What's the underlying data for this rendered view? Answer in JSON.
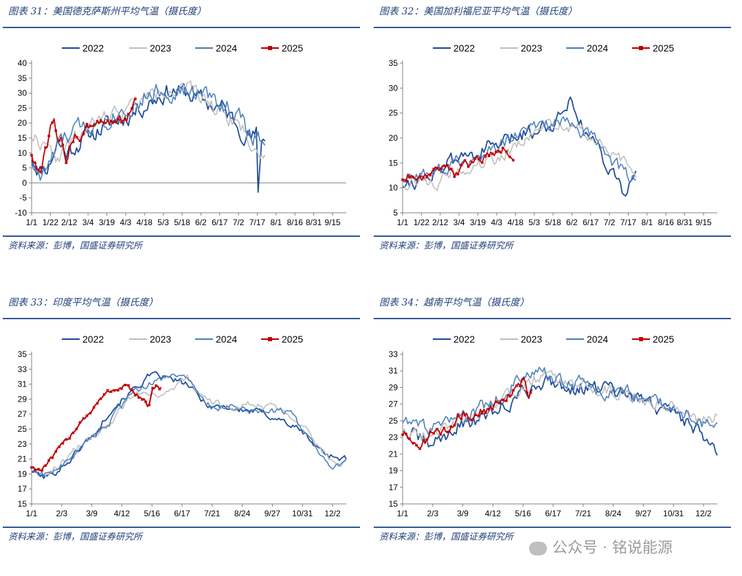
{
  "panels": [
    {
      "title": "图表 31：美国德克萨斯州平均气温（摄氏度）",
      "source": "资料来源：彭博，国盛证券研究所",
      "chart_data": {
        "type": "line",
        "legend": [
          "2022",
          "2023",
          "2024",
          "2025"
        ],
        "ylim": [
          -10,
          40
        ],
        "yticks": [
          -10,
          -5,
          0,
          5,
          10,
          15,
          20,
          25,
          30,
          35,
          40
        ],
        "xticks": [
          "1/1",
          "1/22",
          "2/12",
          "3/4",
          "3/19",
          "4/3",
          "4/18",
          "5/3",
          "5/18",
          "6/2",
          "6/17",
          "7/2",
          "7/17",
          "8/1",
          "8/16",
          "8/31",
          "9/15"
        ],
        "series": [
          {
            "name": "2022",
            "color": "#1f4e9a",
            "width": 1.8,
            "marker": false,
            "seed": 11,
            "amp": 5.5,
            "x": [
              0,
              10,
              20,
              30,
              40,
              60,
              80,
              100,
              120,
              140,
              160,
              180,
              200,
              220,
              240,
              255,
              260,
              262,
              266,
              270
            ],
            "y": [
              9,
              4,
              6,
              14,
              10,
              15,
              18,
              21,
              24,
              28,
              31,
              30,
              27,
              25,
              19,
              15,
              16,
              -6,
              15,
              14
            ]
          },
          {
            "name": "2023",
            "color": "#bfbfbf",
            "width": 1.6,
            "marker": false,
            "seed": 22,
            "amp": 4.5,
            "x": [
              0,
              10,
              20,
              30,
              40,
              60,
              80,
              100,
              120,
              140,
              160,
              180,
              200,
              220,
              240,
              255,
              270
            ],
            "y": [
              16,
              14,
              10,
              8,
              12,
              17,
              21,
              24,
              26,
              30,
              32,
              31,
              28,
              24,
              20,
              12,
              8
            ]
          },
          {
            "name": "2024",
            "color": "#4f81bd",
            "width": 1.6,
            "marker": false,
            "seed": 33,
            "amp": 5.5,
            "x": [
              0,
              10,
              20,
              30,
              40,
              60,
              80,
              100,
              120,
              140,
              160,
              180,
              200,
              220,
              240,
              255,
              270
            ],
            "y": [
              8,
              2,
              6,
              12,
              15,
              19,
              21,
              24,
              27,
              30,
              31,
              30,
              29,
              27,
              22,
              15,
              16
            ]
          },
          {
            "name": "2025",
            "color": "#c00000",
            "width": 1.8,
            "marker": true,
            "seed": 44,
            "amp": 3.0,
            "x": [
              0,
              5,
              10,
              14,
              18,
              22,
              26,
              30,
              35,
              40,
              45,
              50,
              55,
              60,
              70,
              80,
              90,
              100,
              110,
              115,
              120
            ],
            "y": [
              10,
              5,
              3,
              8,
              12,
              18,
              20,
              16,
              14,
              5,
              12,
              16,
              15,
              18,
              20,
              22,
              21,
              22,
              19,
              24,
              27
            ]
          }
        ]
      }
    },
    {
      "title": "图表 32：美国加利福尼亚平均气温（摄氏度）",
      "source": "资料来源：彭博，国盛证券研究所",
      "chart_data": {
        "type": "line",
        "legend": [
          "2022",
          "2023",
          "2024",
          "2025"
        ],
        "ylim": [
          5,
          35
        ],
        "yticks": [
          5,
          10,
          15,
          20,
          25,
          30,
          35
        ],
        "xticks": [
          "1/1",
          "1/22",
          "2/12",
          "3/4",
          "3/19",
          "4/3",
          "4/18",
          "5/3",
          "5/18",
          "6/2",
          "6/17",
          "7/2",
          "7/17",
          "8/1",
          "8/16",
          "8/31",
          "9/15"
        ],
        "series": [
          {
            "name": "2022",
            "color": "#1f4e9a",
            "width": 1.8,
            "marker": false,
            "seed": 55,
            "amp": 2.8,
            "x": [
              0,
              20,
              40,
              60,
              80,
              100,
              120,
              140,
              160,
              180,
              190,
              195,
              200,
              210,
              220,
              240,
              255,
              260,
              270
            ],
            "y": [
              11,
              12,
              14,
              15,
              17,
              18,
              19,
              21,
              22,
              24,
              27,
              29,
              27,
              21,
              20,
              14,
              10,
              9,
              12
            ]
          },
          {
            "name": "2023",
            "color": "#bfbfbf",
            "width": 1.6,
            "marker": false,
            "seed": 66,
            "amp": 2.2,
            "x": [
              0,
              20,
              40,
              60,
              80,
              100,
              120,
              140,
              160,
              180,
              200,
              220,
              240,
              255,
              270
            ],
            "y": [
              11,
              12,
              11,
              13,
              14,
              15,
              17,
              19,
              22,
              23,
              22,
              20,
              17,
              15,
              13
            ]
          },
          {
            "name": "2024",
            "color": "#4f81bd",
            "width": 1.6,
            "marker": false,
            "seed": 77,
            "amp": 2.5,
            "x": [
              0,
              20,
              40,
              60,
              80,
              100,
              120,
              140,
              160,
              180,
              200,
              220,
              240,
              255,
              270
            ],
            "y": [
              12,
              13,
              13,
              15,
              15,
              17,
              19,
              21,
              23,
              23,
              22,
              20,
              16,
              13,
              12
            ]
          },
          {
            "name": "2025",
            "color": "#c00000",
            "width": 1.8,
            "marker": true,
            "seed": 88,
            "amp": 1.6,
            "x": [
              0,
              10,
              20,
              30,
              40,
              50,
              60,
              70,
              80,
              90,
              100,
              110,
              120,
              128
            ],
            "y": [
              12,
              13,
              12,
              13,
              14,
              15,
              13,
              14,
              15,
              16,
              17,
              17,
              18,
              17
            ]
          }
        ]
      }
    },
    {
      "title": "图表 33：印度平均气温（摄氏度）",
      "source": "资料来源：彭博，国盛证券研究所",
      "chart_data": {
        "type": "line",
        "legend": [
          "2022",
          "2023",
          "2024",
          "2025"
        ],
        "ylim": [
          15,
          35
        ],
        "yticks": [
          15,
          17,
          19,
          21,
          23,
          25,
          27,
          29,
          31,
          33,
          35
        ],
        "xticks": [
          "1/1",
          "2/3",
          "3/9",
          "4/12",
          "5/16",
          "6/17",
          "7/21",
          "8/24",
          "9/27",
          "10/31",
          "12/2"
        ],
        "series": [
          {
            "name": "2022",
            "color": "#1f4e9a",
            "width": 1.8,
            "marker": false,
            "seed": 101,
            "amp": 0.8,
            "x": [
              0,
              15,
              30,
              45,
              60,
              75,
              90,
              105,
              120,
              135,
              150,
              165,
              180,
              195,
              210,
              225,
              240,
              255,
              270,
              285,
              300,
              315,
              330,
              345,
              364
            ],
            "y": [
              19.5,
              18.5,
              19.5,
              21,
              23,
              24.5,
              27.5,
              29,
              30.5,
              32,
              32,
              31.5,
              31,
              29,
              28,
              28,
              27.5,
              27.5,
              27,
              26.5,
              25.5,
              24.5,
              22.5,
              21.5,
              21
            ]
          },
          {
            "name": "2023",
            "color": "#bfbfbf",
            "width": 1.6,
            "marker": false,
            "seed": 102,
            "amp": 0.8,
            "x": [
              0,
              15,
              30,
              45,
              60,
              75,
              90,
              105,
              120,
              135,
              150,
              165,
              180,
              195,
              210,
              225,
              240,
              255,
              270,
              285,
              300,
              315,
              330,
              345,
              364
            ],
            "y": [
              20,
              19,
              20,
              21.5,
              23.5,
              24,
              25.5,
              28,
              30,
              30,
              29.5,
              30.5,
              32,
              29,
              28.5,
              28,
              28,
              28.5,
              28,
              28,
              27,
              25.5,
              23,
              21,
              20.5
            ]
          },
          {
            "name": "2024",
            "color": "#4f81bd",
            "width": 1.6,
            "marker": false,
            "seed": 103,
            "amp": 0.8,
            "x": [
              0,
              15,
              30,
              45,
              60,
              75,
              90,
              105,
              120,
              135,
              150,
              165,
              180,
              195,
              210,
              225,
              240,
              255,
              270,
              285,
              300,
              315,
              330,
              345,
              364
            ],
            "y": [
              19.5,
              19,
              19.5,
              21,
              22.5,
              24,
              26,
              28,
              30,
              31,
              31.5,
              32.5,
              32,
              29,
              28,
              28,
              28,
              27.5,
              27.5,
              27.5,
              27,
              24.5,
              22,
              20,
              20.5
            ]
          },
          {
            "name": "2025",
            "color": "#c00000",
            "width": 2.0,
            "marker": true,
            "seed": 104,
            "amp": 0.6,
            "x": [
              0,
              10,
              20,
              30,
              40,
              50,
              60,
              70,
              80,
              90,
              100,
              110,
              120,
              130,
              135,
              140,
              145,
              150
            ],
            "y": [
              20,
              19.5,
              20.5,
              22,
              23.5,
              25,
              26.5,
              27.5,
              29,
              30,
              30.5,
              31,
              29.5,
              29,
              27.5,
              30,
              30.5,
              30.5
            ]
          }
        ]
      }
    },
    {
      "title": "图表 34：越南平均气温（摄氏度）",
      "source": "资料来源：彭博，国盛证券研究所",
      "chart_data": {
        "type": "line",
        "legend": [
          "2022",
          "2023",
          "2024",
          "2025"
        ],
        "ylim": [
          15,
          33
        ],
        "yticks": [
          15,
          17,
          19,
          21,
          23,
          25,
          27,
          29,
          31,
          33
        ],
        "xticks": [
          "1/1",
          "2/3",
          "3/9",
          "4/12",
          "5/16",
          "6/17",
          "7/21",
          "8/24",
          "9/27",
          "10/31",
          "12/2"
        ],
        "series": [
          {
            "name": "2022",
            "color": "#1f4e9a",
            "width": 1.8,
            "marker": false,
            "seed": 201,
            "amp": 1.6,
            "x": [
              0,
              15,
              30,
              45,
              60,
              75,
              90,
              105,
              120,
              135,
              150,
              165,
              180,
              195,
              210,
              225,
              240,
              255,
              270,
              285,
              300,
              315,
              330,
              345,
              364
            ],
            "y": [
              24,
              23,
              22,
              23,
              24,
              25,
              25,
              26,
              27,
              28,
              29,
              30,
              29.5,
              29,
              29,
              29,
              28.5,
              28,
              27.5,
              27,
              26.5,
              26,
              25,
              23.5,
              22
            ]
          },
          {
            "name": "2023",
            "color": "#bfbfbf",
            "width": 1.6,
            "marker": false,
            "seed": 202,
            "amp": 1.4,
            "x": [
              0,
              15,
              30,
              45,
              60,
              75,
              90,
              105,
              120,
              135,
              150,
              165,
              180,
              195,
              210,
              225,
              240,
              255,
              270,
              285,
              300,
              315,
              330,
              345,
              364
            ],
            "y": [
              24,
              24,
              23,
              24,
              25,
              25.5,
              26,
              27,
              28,
              29,
              30,
              30.5,
              30,
              29.5,
              29.5,
              29,
              28.5,
              28.5,
              28,
              27.5,
              27,
              27,
              26.5,
              25,
              25.5
            ]
          },
          {
            "name": "2024",
            "color": "#4f81bd",
            "width": 1.6,
            "marker": false,
            "seed": 203,
            "amp": 1.5,
            "x": [
              0,
              15,
              30,
              45,
              60,
              75,
              90,
              105,
              120,
              135,
              150,
              165,
              180,
              195,
              210,
              225,
              240,
              255,
              270,
              285,
              300,
              315,
              330,
              345,
              364
            ],
            "y": [
              25,
              24.5,
              24,
              24,
              25,
              25.5,
              26.5,
              27.5,
              28.5,
              30,
              30.5,
              30.5,
              30,
              29.5,
              29.5,
              29,
              28.5,
              28.5,
              28,
              27.5,
              27,
              26.5,
              26,
              25,
              24
            ]
          },
          {
            "name": "2025",
            "color": "#c00000",
            "width": 1.8,
            "marker": true,
            "seed": 204,
            "amp": 1.0,
            "x": [
              0,
              10,
              20,
              30,
              40,
              50,
              60,
              70,
              80,
              90,
              100,
              110,
              120,
              130,
              140,
              145,
              150
            ],
            "y": [
              23.5,
              23,
              22,
              23,
              24,
              23.5,
              25,
              26,
              25,
              26,
              26.5,
              27,
              28,
              29,
              30,
              28,
              29
            ]
          }
        ]
      }
    }
  ],
  "watermark": "公众号 · 铭说能源"
}
